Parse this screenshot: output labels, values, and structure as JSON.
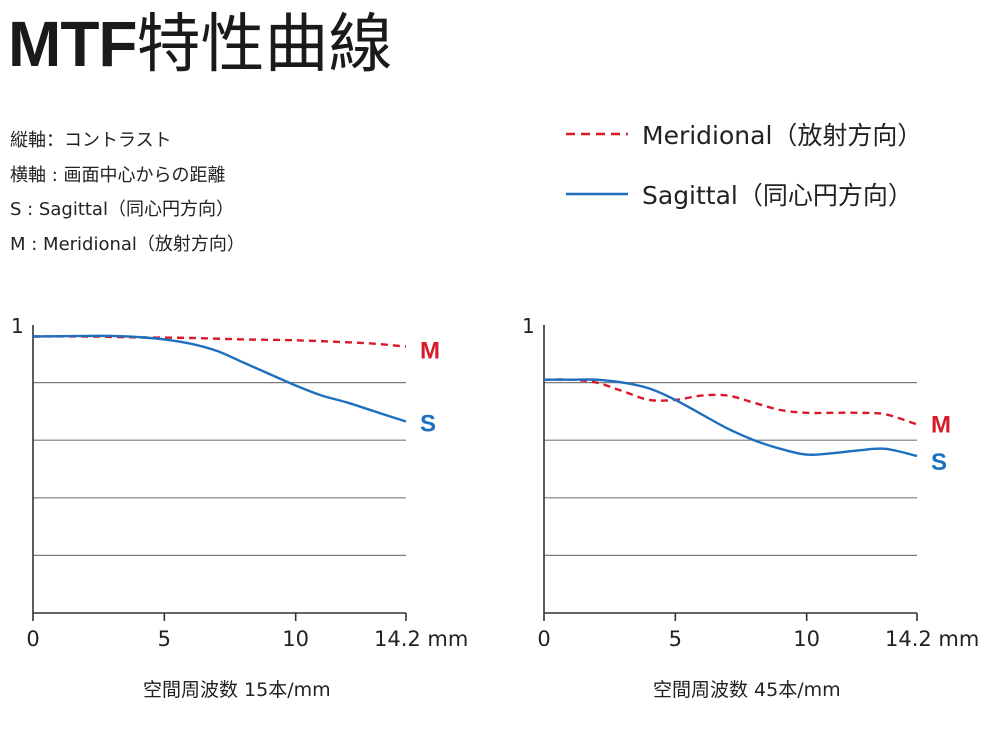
{
  "page": {
    "title_latin": "MTF",
    "title_cjk": "特性曲線",
    "notes": [
      "縦軸：コントラスト",
      "横軸 : 画面中心からの距離",
      "S : Sagittal（同心円方向）",
      "M : Meridional（放射方向）"
    ]
  },
  "legend": {
    "meridional": "Meridional（放射方向）",
    "sagittal": "Sagittal（同心円方向）"
  },
  "colors": {
    "meridional": "#d7192a",
    "sagittal": "#1f6fbf",
    "grid": "#7a7a7a",
    "axis": "#333333"
  },
  "chart_data": [
    {
      "type": "line",
      "title": "空間周波数 15本/mm",
      "xlabel": "空間周波数 15本/mm",
      "ylabel": "",
      "xlim": [
        0,
        14.2
      ],
      "ylim": [
        0,
        1
      ],
      "xticks": [
        0,
        5,
        10,
        14.2
      ],
      "xtick_labels": [
        "0",
        "5",
        "10",
        "14.2 mm"
      ],
      "yticks": [
        1
      ],
      "ytick_labels": [
        "1"
      ],
      "grid_y": [
        0.2,
        0.4,
        0.6,
        0.8
      ],
      "series": [
        {
          "name": "M",
          "style": "dashed",
          "x": [
            0,
            2,
            4,
            6,
            8,
            10,
            12,
            13,
            14.2
          ],
          "y": [
            0.96,
            0.96,
            0.957,
            0.955,
            0.95,
            0.947,
            0.94,
            0.935,
            0.925
          ]
        },
        {
          "name": "S",
          "style": "solid",
          "x": [
            0,
            2,
            3,
            4,
            5,
            6,
            7,
            8,
            9,
            10,
            11,
            12,
            13,
            14.2
          ],
          "y": [
            0.96,
            0.962,
            0.962,
            0.958,
            0.95,
            0.935,
            0.91,
            0.87,
            0.83,
            0.79,
            0.755,
            0.73,
            0.7,
            0.665
          ]
        }
      ]
    },
    {
      "type": "line",
      "title": "空間周波数 45本/mm",
      "xlabel": "空間周波数 45本/mm",
      "ylabel": "",
      "xlim": [
        0,
        14.2
      ],
      "ylim": [
        0,
        1
      ],
      "xticks": [
        0,
        5,
        10,
        14.2
      ],
      "xtick_labels": [
        "0",
        "5",
        "10",
        "14.2 mm"
      ],
      "yticks": [
        1
      ],
      "ytick_labels": [
        "1"
      ],
      "grid_y": [
        0.2,
        0.4,
        0.6,
        0.8
      ],
      "series": [
        {
          "name": "M",
          "style": "dashed",
          "x": [
            0,
            1,
            2,
            3,
            4,
            5,
            6,
            7,
            8,
            9,
            10,
            11,
            12,
            13,
            14.2
          ],
          "y": [
            0.81,
            0.81,
            0.8,
            0.77,
            0.74,
            0.74,
            0.755,
            0.755,
            0.73,
            0.705,
            0.695,
            0.695,
            0.695,
            0.69,
            0.655
          ]
        },
        {
          "name": "S",
          "style": "solid",
          "x": [
            0,
            1,
            2,
            3,
            4,
            5,
            6,
            7,
            8,
            9,
            10,
            11,
            12,
            13,
            14.2
          ],
          "y": [
            0.81,
            0.81,
            0.81,
            0.8,
            0.78,
            0.74,
            0.69,
            0.64,
            0.6,
            0.57,
            0.55,
            0.555,
            0.565,
            0.57,
            0.545
          ]
        }
      ]
    }
  ]
}
